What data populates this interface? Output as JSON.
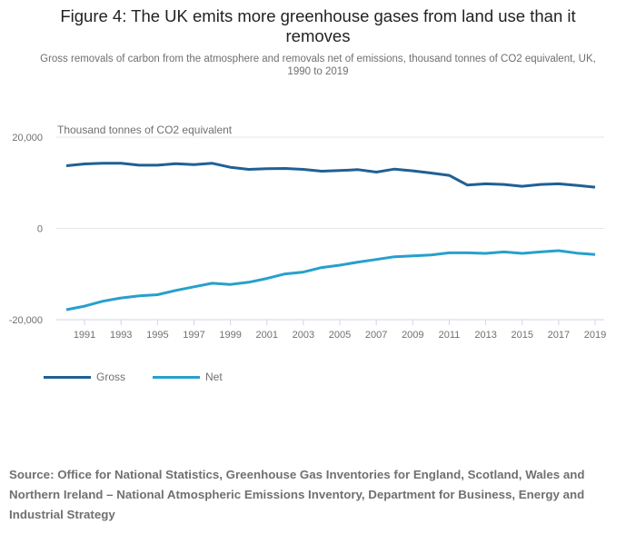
{
  "chart_data": {
    "type": "line",
    "title": "Figure 4: The UK emits more greenhouse gases from land use than it removes",
    "subtitle": "Gross removals of carbon from the atmosphere and removals net of emissions, thousand tonnes of CO2 equivalent, UK, 1990 to 2019",
    "ylabel": "Thousand tonnes of CO2 equivalent",
    "xlabel": "",
    "ylim": [
      -20000,
      20000
    ],
    "yticks": [
      {
        "value": 20000,
        "label": "20,000"
      },
      {
        "value": 0,
        "label": "0"
      },
      {
        "value": -20000,
        "label": "-20,000"
      }
    ],
    "x": [
      1990,
      1991,
      1992,
      1993,
      1994,
      1995,
      1996,
      1997,
      1998,
      1999,
      2000,
      2001,
      2002,
      2003,
      2004,
      2005,
      2006,
      2007,
      2008,
      2009,
      2010,
      2011,
      2012,
      2013,
      2014,
      2015,
      2016,
      2017,
      2018,
      2019
    ],
    "xticks": [
      "1991",
      "1993",
      "1995",
      "1997",
      "1999",
      "2001",
      "2003",
      "2005",
      "2007",
      "2009",
      "2011",
      "2013",
      "2015",
      "2017",
      "2019"
    ],
    "grid": true,
    "legend_position": "bottom-left",
    "series": [
      {
        "name": "Gross",
        "color": "#206095",
        "values": [
          13730,
          14120,
          14260,
          14260,
          13860,
          13860,
          14190,
          13990,
          14260,
          13400,
          12940,
          13070,
          13130,
          12940,
          12540,
          12670,
          12870,
          12340,
          13000,
          12610,
          12140,
          11620,
          9500,
          9770,
          9640,
          9240,
          9640,
          9770,
          9440,
          9040
        ]
      },
      {
        "name": "Net",
        "color": "#27a0cc",
        "values": [
          -17820,
          -17030,
          -15970,
          -15250,
          -14780,
          -14520,
          -13600,
          -12800,
          -12010,
          -12280,
          -11810,
          -10960,
          -9970,
          -9570,
          -8580,
          -8050,
          -7390,
          -6800,
          -6200,
          -6010,
          -5810,
          -5350,
          -5350,
          -5480,
          -5150,
          -5480,
          -5150,
          -4880,
          -5410,
          -5740
        ]
      }
    ]
  },
  "source": "Source: Office for National Statistics, Greenhouse Gas Inventories for England, Scotland, Wales and Northern Ireland – National Atmospheric Emissions Inventory, Department for Business, Energy and Industrial Strategy"
}
